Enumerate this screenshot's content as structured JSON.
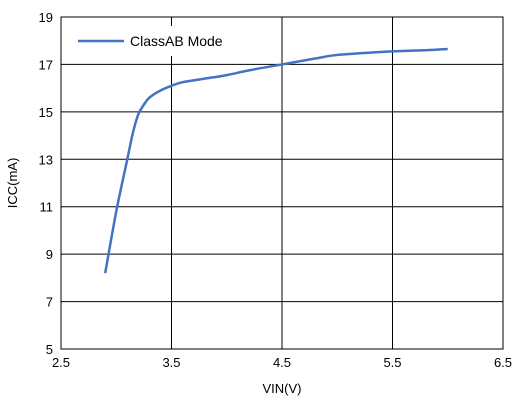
{
  "chart_data": {
    "type": "line",
    "xlabel": "VIN(V)",
    "ylabel": "ICC(mA)",
    "xlim": [
      2.5,
      6.5
    ],
    "ylim": [
      5,
      19
    ],
    "xticks": [
      "2.5",
      "3.5",
      "4.5",
      "5.5",
      "6.5"
    ],
    "yticks": [
      "5",
      "7",
      "9",
      "11",
      "13",
      "15",
      "17",
      "19"
    ],
    "grid": true,
    "legend_position": "top-left",
    "series": [
      {
        "name": "ClassAB Mode",
        "color": "#4472C4",
        "x": [
          2.9,
          3.0,
          3.1,
          3.15,
          3.2,
          3.25,
          3.3,
          3.4,
          3.5,
          3.6,
          3.8,
          4.0,
          4.2,
          4.5,
          4.8,
          5.0,
          5.3,
          5.5,
          5.8,
          6.0
        ],
        "y": [
          8.2,
          10.8,
          13.0,
          14.1,
          14.9,
          15.3,
          15.6,
          15.9,
          16.1,
          16.25,
          16.4,
          16.55,
          16.75,
          17.0,
          17.25,
          17.4,
          17.5,
          17.55,
          17.6,
          17.65
        ]
      }
    ]
  }
}
